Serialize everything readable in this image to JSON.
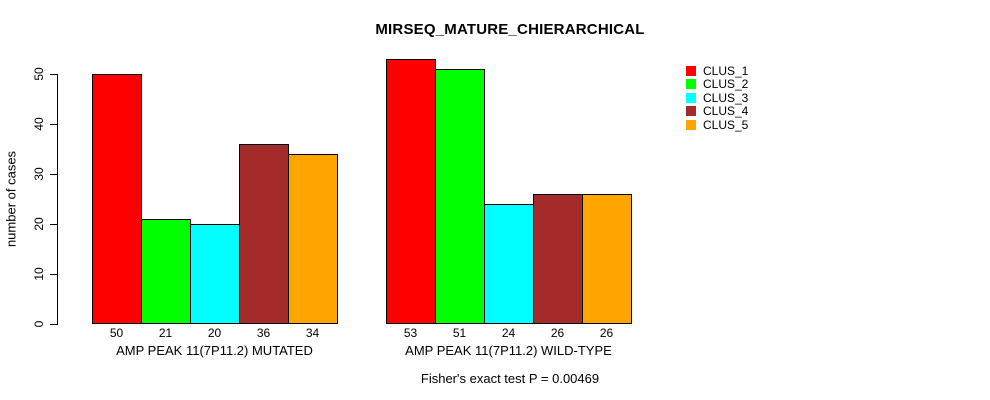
{
  "chart_data": {
    "type": "bar",
    "title": "MIRSEQ_MATURE_CHIERARCHICAL",
    "ylabel": "number of cases",
    "xlabel": "",
    "ylim": [
      0,
      50
    ],
    "yticks": [
      0,
      10,
      20,
      30,
      40,
      50
    ],
    "grid": false,
    "legend_position": "right",
    "bar_value_labels": true,
    "categories": [
      "AMP PEAK 11(7P11.2) MUTATED",
      "AMP PEAK 11(7P11.2) WILD-TYPE"
    ],
    "series": [
      {
        "name": "CLUS_1",
        "color": "#FF0000",
        "values": [
          50,
          53
        ]
      },
      {
        "name": "CLUS_2",
        "color": "#00FF00",
        "values": [
          21,
          51
        ]
      },
      {
        "name": "CLUS_3",
        "color": "#00FFFF",
        "values": [
          20,
          24
        ]
      },
      {
        "name": "CLUS_4",
        "color": "#A52A2A",
        "values": [
          36,
          26
        ]
      },
      {
        "name": "CLUS_5",
        "color": "#FFA500",
        "values": [
          34,
          26
        ]
      }
    ],
    "annotation": "Fisher's exact test P = 0.00469",
    "colors": {
      "axis": "#000000",
      "text": "#000000",
      "background": "#FFFFFF",
      "bar_border": "#000000"
    }
  }
}
